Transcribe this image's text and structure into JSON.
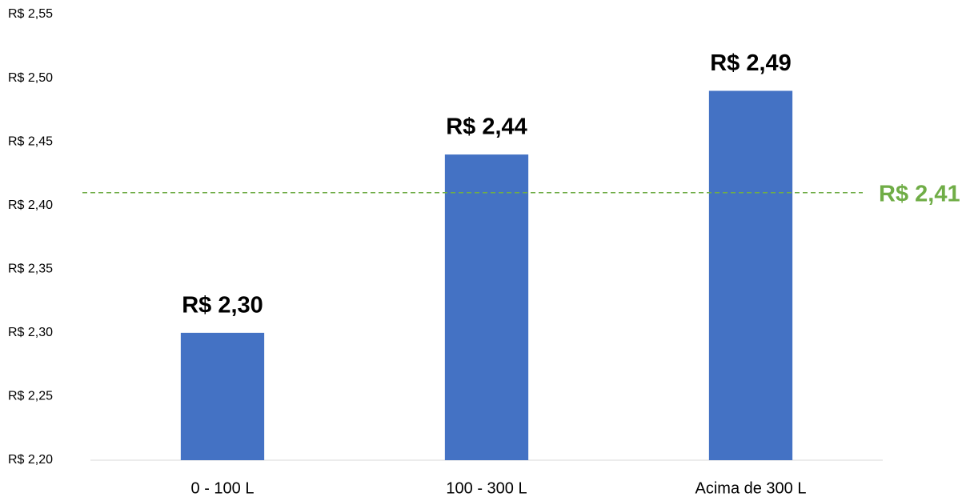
{
  "chart_data": {
    "type": "bar",
    "categories": [
      "0 - 100 L",
      "100 - 300 L",
      "Acima de 300 L"
    ],
    "values": [
      2.3,
      2.44,
      2.49
    ],
    "value_labels": [
      "R$ 2,30",
      "R$ 2,44",
      "R$ 2,49"
    ],
    "color": "#4472c4",
    "ylim": [
      2.2,
      2.55
    ],
    "yticks": [
      {
        "value": 2.2,
        "label": "R$ 2,20"
      },
      {
        "value": 2.25,
        "label": "R$ 2,25"
      },
      {
        "value": 2.3,
        "label": "R$ 2,30"
      },
      {
        "value": 2.35,
        "label": "R$ 2,35"
      },
      {
        "value": 2.4,
        "label": "R$ 2,40"
      },
      {
        "value": 2.45,
        "label": "R$ 2,45"
      },
      {
        "value": 2.5,
        "label": "R$ 2,50"
      },
      {
        "value": 2.55,
        "label": "R$ 2,55"
      }
    ],
    "grid": false,
    "reference_line": {
      "value": 2.41,
      "label": "R$ 2,41",
      "color": "#70ad47"
    }
  }
}
